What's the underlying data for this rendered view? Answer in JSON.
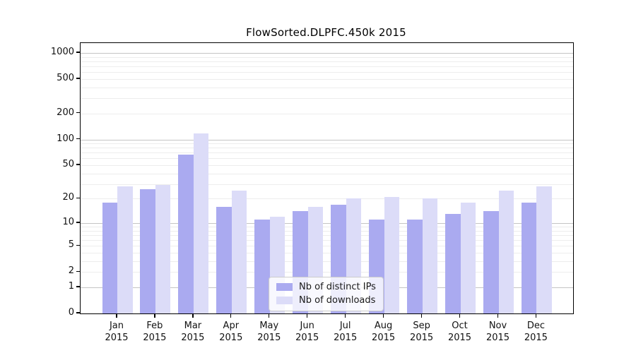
{
  "chart_data": {
    "type": "bar",
    "title": "FlowSorted.DLPFC.450k 2015",
    "categories": [
      "Jan",
      "Feb",
      "Mar",
      "Apr",
      "May",
      "Jun",
      "Jul",
      "Aug",
      "Sep",
      "Oct",
      "Nov",
      "Dec"
    ],
    "category_year": "2015",
    "series": [
      {
        "name": "Nb of distinct IPs",
        "color": "#aaaaf0",
        "values": [
          18,
          26,
          66,
          16,
          11,
          14,
          17,
          11,
          11,
          13,
          14,
          18
        ]
      },
      {
        "name": "Nb of downloads",
        "color": "#dcdcf8",
        "values": [
          28,
          29,
          118,
          25,
          12,
          16,
          20,
          21,
          20,
          18,
          25,
          28
        ]
      }
    ],
    "xlabel": "",
    "ylabel": "",
    "y_scale": "log10(value+1)",
    "y_ticks": [
      0,
      1,
      2,
      5,
      10,
      20,
      50,
      100,
      200,
      500,
      1000
    ],
    "ylim": [
      0,
      1300
    ],
    "grid": true,
    "legend_position": "lower center inside plot",
    "colors": {
      "major_grid": "#c4c4c4",
      "minor_grid": "#ededed",
      "axis": "#000000",
      "text": "#111111",
      "background": "#ffffff"
    }
  }
}
